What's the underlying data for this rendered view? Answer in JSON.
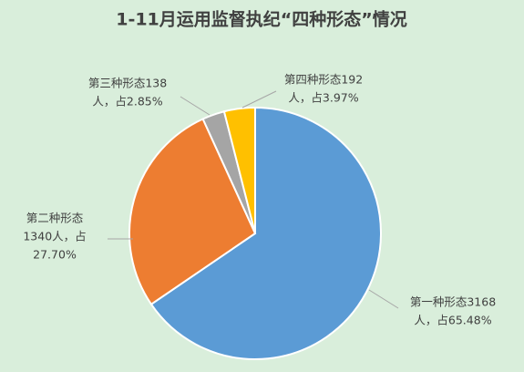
{
  "chart_data": {
    "type": "pie",
    "title": "1-11月运用监督执纪“四种形态”情况",
    "values": [
      3168,
      1340,
      138,
      192
    ],
    "value_labels": [
      [
        "第一种形态3168",
        "人，占65.48%"
      ],
      [
        "第二种形态",
        "1340人，占",
        "27.70%"
      ],
      [
        "第三种形态138",
        "人，占2.85%"
      ],
      [
        "第四种形态192",
        "人，占3.97%"
      ]
    ],
    "colors": [
      "#5b9bd5",
      "#ed7d31",
      "#a5a5a5",
      "#ffc000"
    ]
  }
}
